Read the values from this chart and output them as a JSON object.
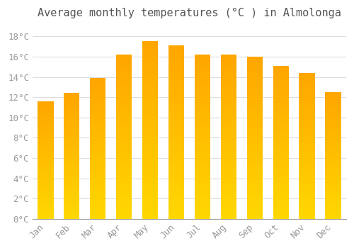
{
  "months": [
    "Jan",
    "Feb",
    "Mar",
    "Apr",
    "May",
    "Jun",
    "Jul",
    "Aug",
    "Sep",
    "Oct",
    "Nov",
    "Dec"
  ],
  "values": [
    11.6,
    12.4,
    13.9,
    16.2,
    17.5,
    17.1,
    16.2,
    16.2,
    16.0,
    15.1,
    14.4,
    12.5
  ],
  "title": "Average monthly temperatures (°C ) in Almolonga",
  "ylabel_ticks": [
    "0°C",
    "2°C",
    "4°C",
    "6°C",
    "8°C",
    "10°C",
    "12°C",
    "14°C",
    "16°C",
    "18°C"
  ],
  "ytick_values": [
    0,
    2,
    4,
    6,
    8,
    10,
    12,
    14,
    16,
    18
  ],
  "ylim": [
    0,
    19
  ],
  "bar_color_top": "#FFA500",
  "bar_color_bottom": "#FFD700",
  "background_color": "#ffffff",
  "grid_color": "#dddddd",
  "title_fontsize": 11,
  "tick_fontsize": 9,
  "title_color": "#555555",
  "tick_color": "#999999"
}
